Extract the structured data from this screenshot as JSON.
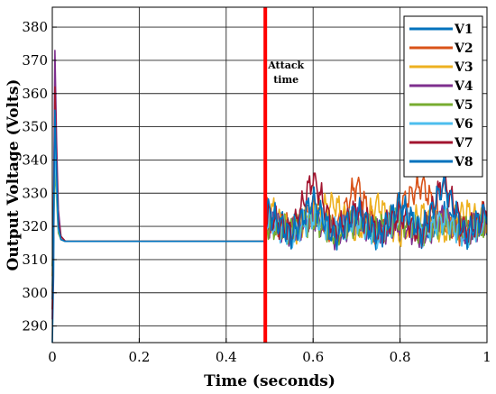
{
  "chart_data": {
    "type": "line",
    "title": "",
    "xlabel": "Time (seconds)",
    "ylabel": "Output Voltage (Volts)",
    "xlim": [
      0,
      1
    ],
    "ylim": [
      285,
      386
    ],
    "xticks": [
      0,
      0.2,
      0.4,
      0.6,
      0.8,
      1
    ],
    "xtick_labels": [
      "0",
      "0.2",
      "0.4",
      "0.6",
      "0.8",
      "1"
    ],
    "yticks": [
      290,
      300,
      310,
      320,
      330,
      340,
      350,
      360,
      370,
      380
    ],
    "ytick_labels": [
      "290",
      "300",
      "310",
      "320",
      "330",
      "340",
      "350",
      "360",
      "370",
      "380"
    ],
    "grid": true,
    "legend_position": "top-right",
    "steady_state_value": 315.5,
    "attack": {
      "time": 0.49,
      "label_line1": "Attack",
      "label_line2": "time",
      "color": "#ff0000"
    },
    "series": [
      {
        "name": "V1",
        "color": "#0072bd",
        "peak": 364,
        "x": [
          0,
          0.003,
          0.006,
          0.01,
          0.014,
          0.02,
          0.03,
          0.04,
          0.05,
          0.49,
          0.5,
          0.55,
          0.6,
          0.65,
          0.7,
          0.75,
          0.8,
          0.85,
          0.9,
          0.95,
          1
        ],
        "y": [
          285,
          305,
          364,
          340,
          322,
          316,
          315.5,
          315.5,
          315.5,
          315.5,
          325,
          318,
          326,
          317,
          324,
          316,
          326,
          318,
          323,
          318,
          322
        ]
      },
      {
        "name": "V2",
        "color": "#d95319",
        "peak": 350,
        "x": [
          0,
          0.003,
          0.006,
          0.01,
          0.014,
          0.02,
          0.03,
          0.04,
          0.05,
          0.49,
          0.5,
          0.55,
          0.6,
          0.65,
          0.7,
          0.75,
          0.8,
          0.85,
          0.9,
          0.95,
          1
        ],
        "y": [
          300,
          318,
          350,
          333,
          320,
          316,
          315.5,
          315.5,
          315.5,
          315.5,
          322,
          319,
          325,
          318,
          333,
          317,
          326,
          333,
          321,
          318,
          324
        ]
      },
      {
        "name": "V3",
        "color": "#edb120",
        "peak": 352,
        "x": [
          0,
          0.003,
          0.006,
          0.01,
          0.014,
          0.02,
          0.03,
          0.04,
          0.05,
          0.49,
          0.5,
          0.55,
          0.6,
          0.65,
          0.7,
          0.75,
          0.8,
          0.85,
          0.9,
          0.95,
          1
        ],
        "y": [
          305,
          320,
          352,
          334,
          320,
          316,
          315.5,
          315.5,
          315.5,
          315.5,
          326,
          317,
          324,
          327,
          318,
          327,
          317,
          324,
          318,
          325,
          320
        ]
      },
      {
        "name": "V4",
        "color": "#7e2f8e",
        "peak": 373,
        "x": [
          0,
          0.003,
          0.006,
          0.01,
          0.014,
          0.02,
          0.03,
          0.04,
          0.05,
          0.49,
          0.5,
          0.55,
          0.6,
          0.65,
          0.7,
          0.75,
          0.8,
          0.85,
          0.9,
          0.95,
          1
        ],
        "y": [
          292,
          325,
          373,
          345,
          325,
          317,
          315.5,
          315.5,
          315.5,
          315.5,
          321,
          318,
          323,
          317,
          322,
          318,
          321,
          317,
          323,
          318,
          321
        ]
      },
      {
        "name": "V5",
        "color": "#77ac30",
        "peak": 338,
        "x": [
          0,
          0.003,
          0.006,
          0.01,
          0.014,
          0.02,
          0.03,
          0.04,
          0.05,
          0.49,
          0.5,
          0.55,
          0.6,
          0.65,
          0.7,
          0.75,
          0.8,
          0.85,
          0.9,
          0.95,
          1
        ],
        "y": [
          308,
          322,
          338,
          328,
          318,
          316,
          315.5,
          315.5,
          315.5,
          315.5,
          320,
          319,
          322,
          318,
          321,
          319,
          322,
          318,
          321,
          319,
          320
        ]
      },
      {
        "name": "V6",
        "color": "#4dbeee",
        "peak": 345,
        "x": [
          0,
          0.003,
          0.006,
          0.01,
          0.014,
          0.02,
          0.03,
          0.04,
          0.05,
          0.49,
          0.5,
          0.55,
          0.6,
          0.65,
          0.7,
          0.75,
          0.8,
          0.85,
          0.9,
          0.95,
          1
        ],
        "y": [
          302,
          319,
          345,
          330,
          319,
          316,
          315.5,
          315.5,
          315.5,
          315.5,
          322,
          317,
          323,
          319,
          322,
          317,
          324,
          318,
          322,
          317,
          322
        ]
      },
      {
        "name": "V7",
        "color": "#a2142f",
        "peak": 362,
        "x": [
          0,
          0.003,
          0.006,
          0.01,
          0.014,
          0.02,
          0.03,
          0.04,
          0.05,
          0.49,
          0.5,
          0.55,
          0.6,
          0.65,
          0.7,
          0.75,
          0.8,
          0.85,
          0.9,
          0.95,
          1
        ],
        "y": [
          295,
          322,
          362,
          340,
          322,
          317,
          315.5,
          315.5,
          315.5,
          315.5,
          323,
          318,
          335,
          318,
          325,
          318,
          324,
          317,
          334,
          318,
          324
        ]
      },
      {
        "name": "V8",
        "color": "#0072bd",
        "peak": 355,
        "x": [
          0,
          0.003,
          0.006,
          0.01,
          0.014,
          0.02,
          0.03,
          0.04,
          0.05,
          0.49,
          0.5,
          0.55,
          0.6,
          0.65,
          0.7,
          0.75,
          0.8,
          0.85,
          0.9,
          0.95,
          1
        ],
        "y": [
          298,
          320,
          355,
          336,
          320,
          316,
          315.5,
          315.5,
          315.5,
          315.5,
          324,
          317,
          328,
          316,
          325,
          317,
          327,
          318,
          333,
          317,
          325
        ]
      }
    ]
  }
}
